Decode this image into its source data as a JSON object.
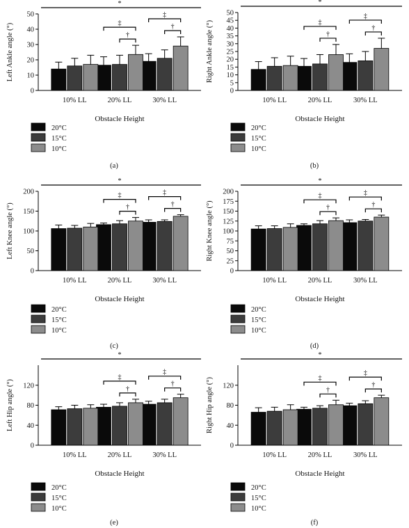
{
  "chart_data": [
    {
      "panel": "(a)",
      "type": "bar",
      "ylabel": "Left Ankle angle (°)",
      "xlabel": "Obstacle Height",
      "ylim": [
        0,
        50
      ],
      "yticks": [
        0,
        10,
        20,
        30,
        40,
        50
      ],
      "categories": [
        "10% LL",
        "20% LL",
        "30% LL"
      ],
      "series": [
        {
          "name": "20°C",
          "values": [
            14,
            16.5,
            19
          ],
          "errors": [
            4.5,
            5.5,
            5
          ]
        },
        {
          "name": "15°C",
          "values": [
            16,
            17,
            21
          ],
          "errors": [
            5,
            6,
            5.5
          ]
        },
        {
          "name": "10°C",
          "values": [
            17,
            23.5,
            29
          ],
          "errors": [
            6,
            6,
            6
          ]
        }
      ],
      "annotations": [
        "*",
        "‡",
        "†",
        "‡",
        "†"
      ],
      "legend": "bottom-left"
    },
    {
      "panel": "(b)",
      "type": "bar",
      "ylabel": "Right Ankle angle (°)",
      "xlabel": "Obstacle Height",
      "ylim": [
        0,
        50
      ],
      "yticks": [
        0,
        5,
        10,
        15,
        20,
        25,
        30,
        35,
        40,
        45,
        50
      ],
      "categories": [
        "10% LL",
        "20% LL",
        "30% LL"
      ],
      "series": [
        {
          "name": "20°C",
          "values": [
            13.5,
            15.5,
            18
          ],
          "errors": [
            5,
            5,
            5.5
          ]
        },
        {
          "name": "15°C",
          "values": [
            15.5,
            17,
            19
          ],
          "errors": [
            5.5,
            6,
            6
          ]
        },
        {
          "name": "10°C",
          "values": [
            16,
            23,
            27
          ],
          "errors": [
            6,
            6.5,
            6.5
          ]
        }
      ],
      "annotations": [
        "*",
        "‡",
        "†",
        "‡",
        "†"
      ],
      "legend": "bottom-left"
    },
    {
      "panel": "(c)",
      "type": "bar",
      "ylabel": "Left Knee angle (°)",
      "xlabel": "Obstacle Height",
      "ylim": [
        0,
        200
      ],
      "yticks": [
        0,
        50,
        100,
        150,
        200
      ],
      "categories": [
        "10% LL",
        "20% LL",
        "30% LL"
      ],
      "series": [
        {
          "name": "20°C",
          "values": [
            106,
            116,
            122
          ],
          "errors": [
            9,
            4,
            6
          ]
        },
        {
          "name": "15°C",
          "values": [
            107,
            118,
            124
          ],
          "errors": [
            7,
            8,
            4
          ]
        },
        {
          "name": "10°C",
          "values": [
            110,
            125,
            137
          ],
          "errors": [
            9,
            9,
            4
          ]
        }
      ],
      "annotations": [
        "*",
        "‡",
        "†",
        "‡",
        "†"
      ],
      "legend": "bottom-left"
    },
    {
      "panel": "(d)",
      "type": "bar",
      "ylabel": "Right Knee angle (°)",
      "xlabel": "Obstacle Height",
      "ylim": [
        0,
        200
      ],
      "yticks": [
        0,
        25,
        50,
        75,
        100,
        125,
        150,
        175,
        200
      ],
      "categories": [
        "10% LL",
        "20% LL",
        "30% LL"
      ],
      "series": [
        {
          "name": "20°C",
          "values": [
            105,
            114,
            121
          ],
          "errors": [
            8,
            4,
            7
          ]
        },
        {
          "name": "15°C",
          "values": [
            106,
            118,
            125
          ],
          "errors": [
            7,
            8,
            4
          ]
        },
        {
          "name": "10°C",
          "values": [
            109,
            126,
            135
          ],
          "errors": [
            9,
            7,
            5
          ]
        }
      ],
      "annotations": [
        "*",
        "‡",
        "†",
        "‡",
        "†"
      ],
      "legend": "bottom-left"
    },
    {
      "panel": "(e)",
      "type": "bar",
      "ylabel": "Left Hip angle (°)",
      "xlabel": "Obstacle Height",
      "ylim": [
        0,
        160
      ],
      "yticks": [
        0,
        40,
        80,
        120
      ],
      "categories": [
        "10% LL",
        "20% LL",
        "30% LL"
      ],
      "series": [
        {
          "name": "20°C",
          "values": [
            71,
            76,
            82
          ],
          "errors": [
            6,
            6,
            6
          ]
        },
        {
          "name": "15°C",
          "values": [
            73,
            78,
            85
          ],
          "errors": [
            7,
            7,
            7
          ]
        },
        {
          "name": "10°C",
          "values": [
            74,
            85,
            95
          ],
          "errors": [
            7,
            7,
            7
          ]
        }
      ],
      "annotations": [
        "*",
        "‡",
        "†",
        "‡",
        "†"
      ],
      "legend": "bottom-left"
    },
    {
      "panel": "(f)",
      "type": "bar",
      "ylabel": "Right Hip angle (°)",
      "xlabel": "Obstacle Height",
      "ylim": [
        0,
        160
      ],
      "yticks": [
        0,
        40,
        80,
        120
      ],
      "categories": [
        "10% LL",
        "20% LL",
        "30% LL"
      ],
      "series": [
        {
          "name": "20°C",
          "values": [
            66,
            72,
            79
          ],
          "errors": [
            9,
            4,
            5
          ]
        },
        {
          "name": "15°C",
          "values": [
            68,
            74,
            83
          ],
          "errors": [
            8,
            5,
            6
          ]
        },
        {
          "name": "10°C",
          "values": [
            71,
            81,
            95
          ],
          "errors": [
            10,
            9,
            5
          ]
        }
      ],
      "annotations": [
        "*",
        "‡",
        "†",
        "‡",
        "†"
      ],
      "legend": "bottom-left"
    }
  ],
  "colors": {
    "20°C": "#0a0a0a",
    "15°C": "#3c3c3c",
    "10°C": "#8c8c8c",
    "axis": "#000000"
  }
}
